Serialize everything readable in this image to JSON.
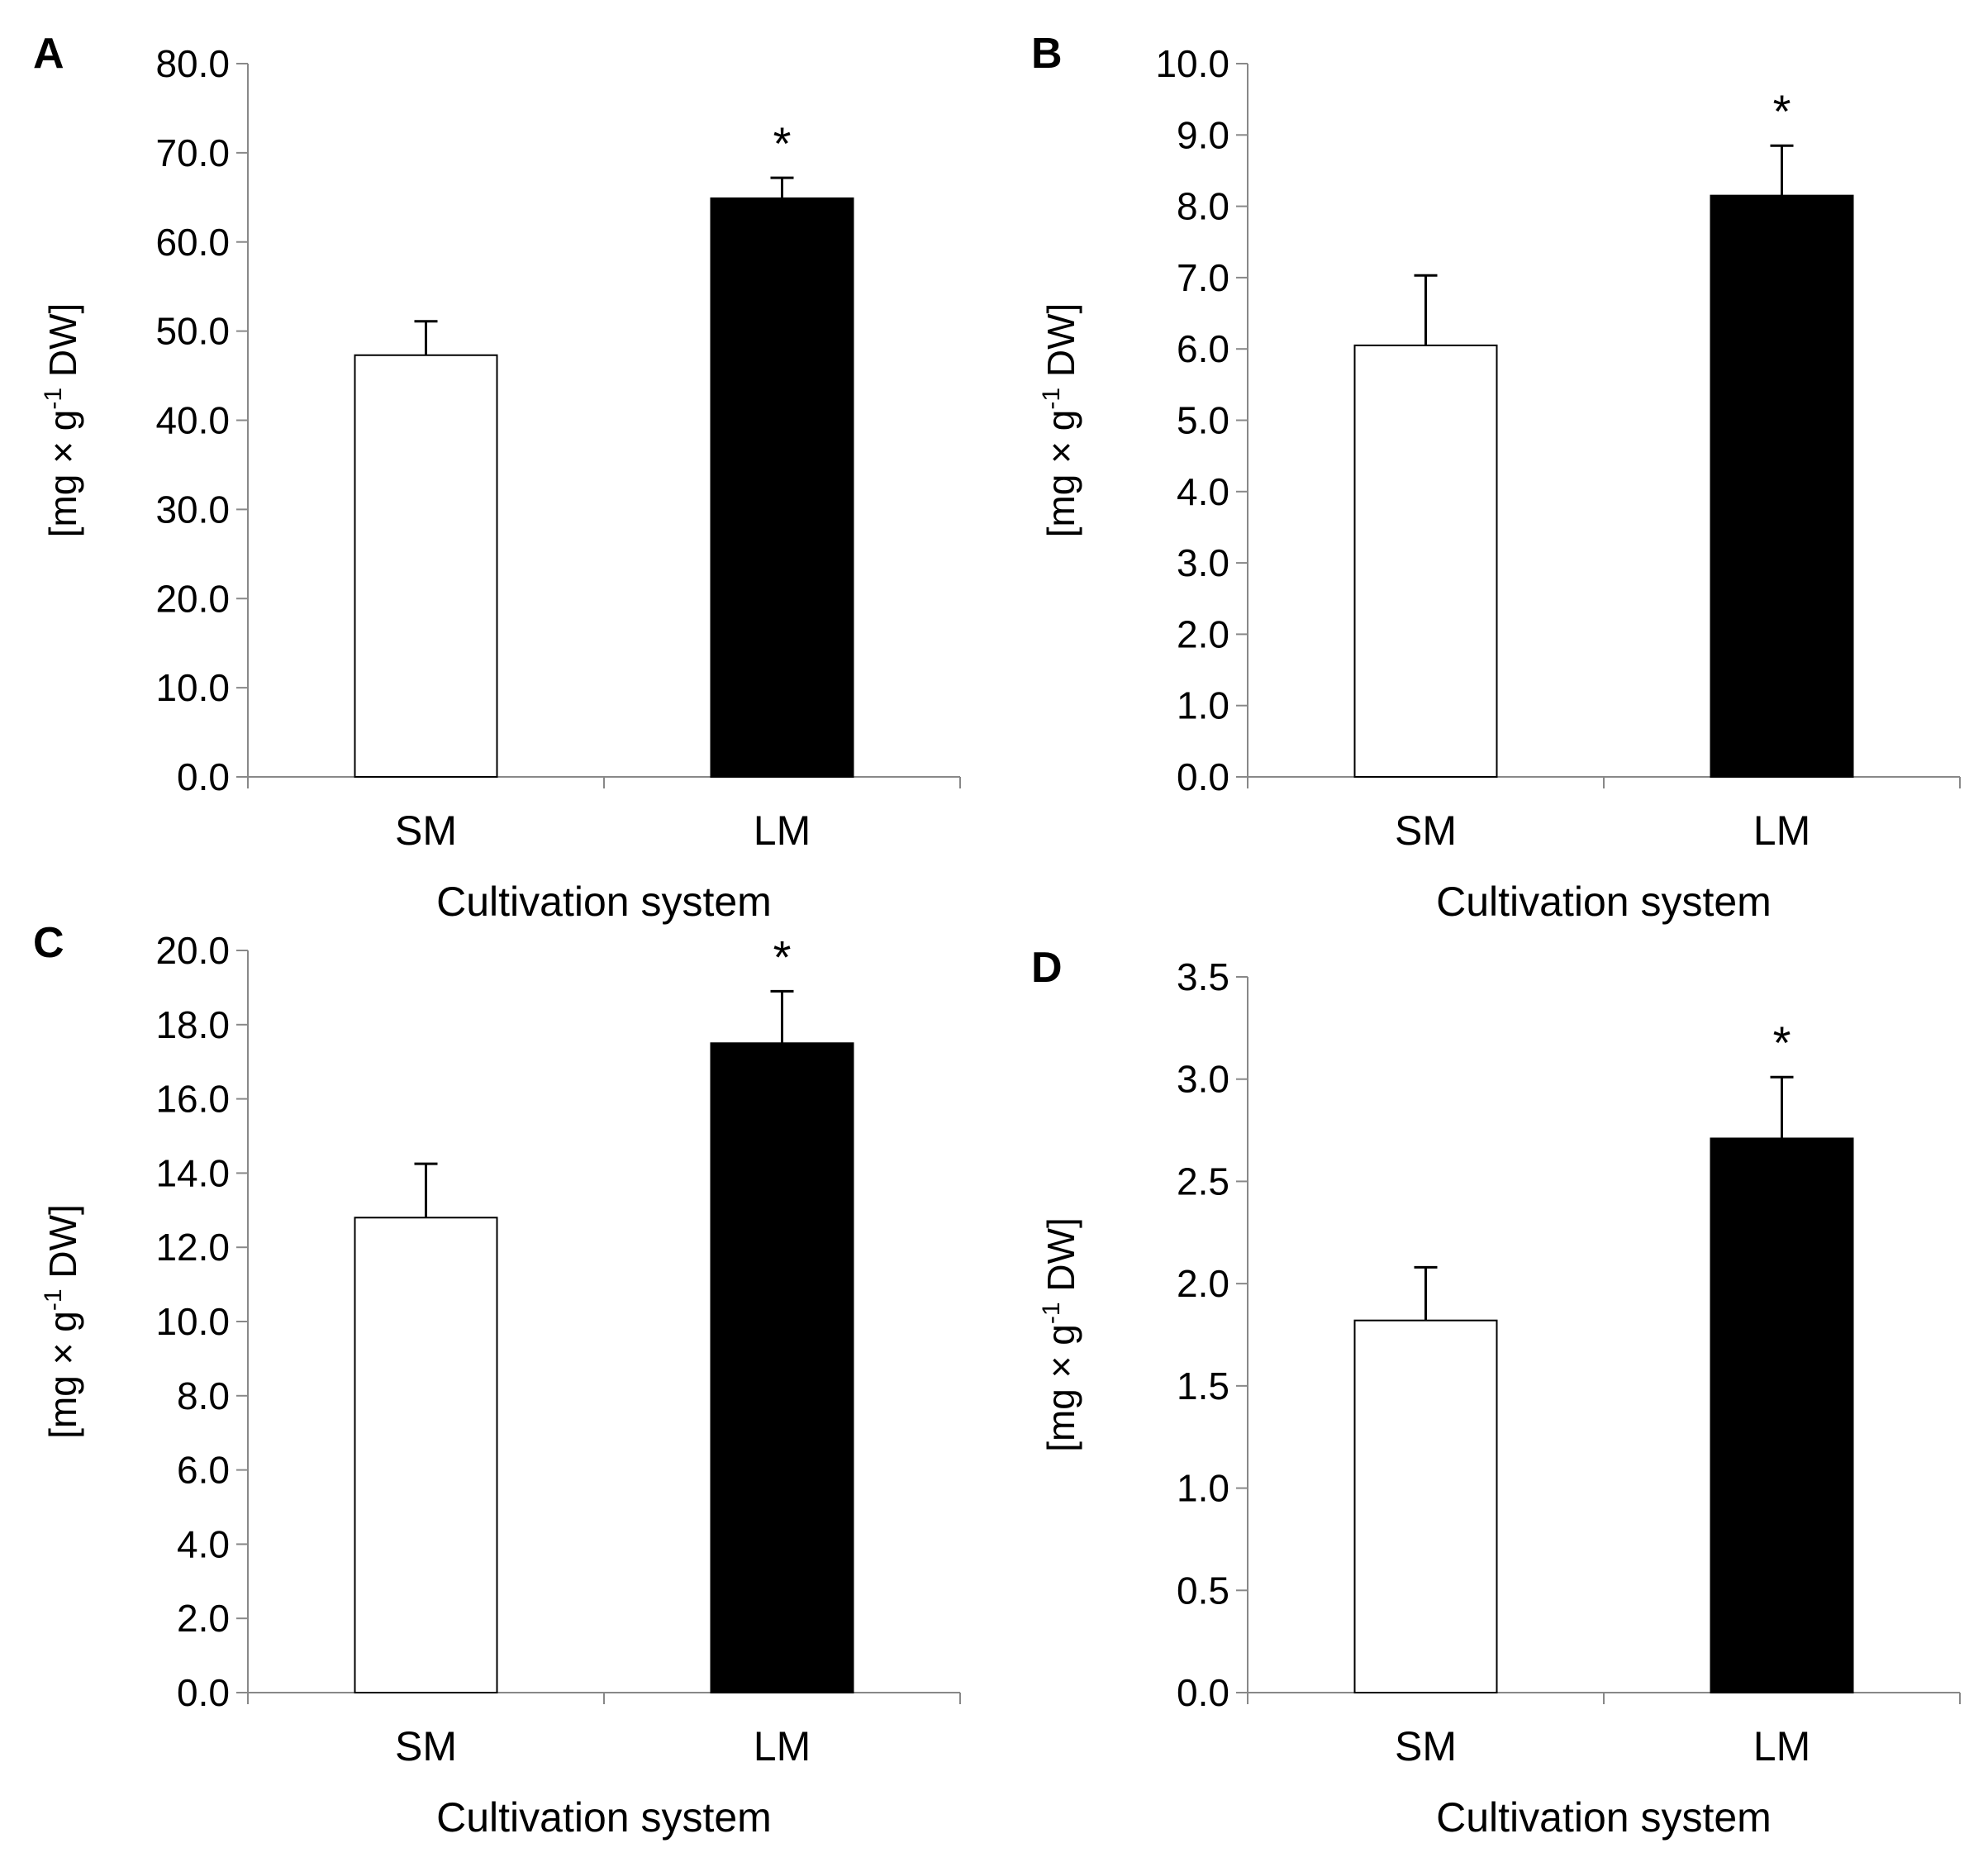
{
  "figure": {
    "background": "#ffffff",
    "bar_colors": {
      "SM": "#ffffff",
      "LM": "#000000"
    },
    "ylabel": {
      "prefix": "[mg × g",
      "superscript": "-1",
      "suffix": " DW]"
    }
  },
  "chart_data": [
    {
      "type": "bar",
      "panel": "A",
      "categories": [
        "SM",
        "LM"
      ],
      "values": [
        47.3,
        64.9
      ],
      "errors": [
        3.8,
        2.3
      ],
      "significance": [
        "",
        "*"
      ],
      "xlabel": "Cultivation system",
      "ylabel": "[mg × g-1 DW]",
      "ylim": [
        0,
        80
      ],
      "yticks": [
        "0.0",
        "10.0",
        "20.0",
        "30.0",
        "40.0",
        "50.0",
        "60.0",
        "70.0",
        "80.0"
      ],
      "grid": false
    },
    {
      "type": "bar",
      "panel": "B",
      "categories": [
        "SM",
        "LM"
      ],
      "values": [
        6.05,
        8.15
      ],
      "errors": [
        0.98,
        0.7
      ],
      "significance": [
        "",
        "*"
      ],
      "xlabel": "Cultivation system",
      "ylabel": "[mg × g-1 DW]",
      "ylim": [
        0,
        10
      ],
      "yticks": [
        "0.0",
        "1.0",
        "2.0",
        "3.0",
        "4.0",
        "5.0",
        "6.0",
        "7.0",
        "8.0",
        "9.0",
        "10.0"
      ],
      "grid": false
    },
    {
      "type": "bar",
      "panel": "C",
      "categories": [
        "SM",
        "LM"
      ],
      "values": [
        12.8,
        17.5
      ],
      "errors": [
        1.45,
        1.4
      ],
      "significance": [
        "",
        "*"
      ],
      "xlabel": "Cultivation system",
      "ylabel": "[mg × g-1 DW]",
      "ylim": [
        0,
        20
      ],
      "yticks": [
        "0.0",
        "2.0",
        "4.0",
        "6.0",
        "8.0",
        "10.0",
        "12.0",
        "14.0",
        "16.0",
        "18.0",
        "20.0"
      ],
      "grid": false
    },
    {
      "type": "bar",
      "panel": "D",
      "categories": [
        "SM",
        "LM"
      ],
      "values": [
        1.82,
        2.71
      ],
      "errors": [
        0.26,
        0.3
      ],
      "significance": [
        "",
        "*"
      ],
      "xlabel": "Cultivation system",
      "ylabel": "[mg × g-1 DW]",
      "ylim": [
        0,
        3.5
      ],
      "yticks": [
        "0.0",
        "0.5",
        "1.0",
        "1.5",
        "2.0",
        "2.5",
        "3.0",
        "3.5"
      ],
      "grid": false
    }
  ]
}
